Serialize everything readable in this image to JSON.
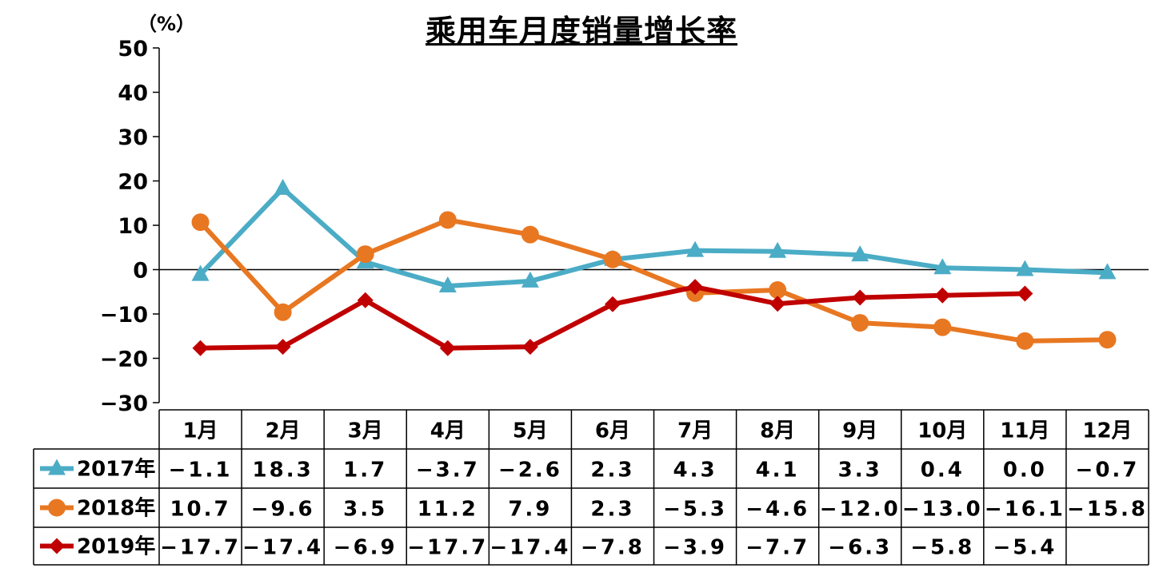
{
  "chart_data": {
    "type": "line",
    "title": "乘用车月度销量增长率",
    "unit": "（%）",
    "categories": [
      "1月",
      "2月",
      "3月",
      "4月",
      "5月",
      "6月",
      "7月",
      "8月",
      "9月",
      "10月",
      "11月",
      "12月"
    ],
    "ylim": [
      -30,
      50
    ],
    "yticks": [
      50,
      40,
      30,
      20,
      10,
      0,
      -10,
      -20,
      -30
    ],
    "grid": false,
    "legend": "data-table",
    "series": [
      {
        "name": "2017年",
        "color": "#4BACC6",
        "marker": "triangle",
        "values": [
          -1.1,
          18.3,
          1.7,
          -3.7,
          -2.6,
          2.3,
          4.3,
          4.1,
          3.3,
          0.4,
          0.0,
          -0.7
        ],
        "labels": [
          "-1.1",
          "18.3",
          "1.7",
          "-3.7",
          "-2.6",
          "2.3",
          "4.3",
          "4.1",
          "3.3",
          "0.4",
          "0.0",
          "-0.7"
        ]
      },
      {
        "name": "2018年",
        "color": "#E87722",
        "marker": "circle",
        "values": [
          10.7,
          -9.6,
          3.5,
          11.2,
          7.9,
          2.3,
          -5.3,
          -4.6,
          -12.0,
          -13.0,
          -16.1,
          -15.8
        ],
        "labels": [
          "10.7",
          "-9.6",
          "3.5",
          "11.2",
          "7.9",
          "2.3",
          "-5.3",
          "-4.6",
          "-12.0",
          "-13.0",
          "-16.1",
          "-15.8"
        ]
      },
      {
        "name": "2019年",
        "color": "#C00000",
        "marker": "diamond",
        "values": [
          -17.7,
          -17.4,
          -6.9,
          -17.7,
          -17.4,
          -7.8,
          -3.9,
          -7.7,
          -6.3,
          -5.8,
          -5.4,
          null
        ],
        "labels": [
          "-17.7",
          "-17.4",
          "-6.9",
          "-17.7",
          "-17.4",
          "-7.8",
          "-3.9",
          "-7.7",
          "-6.3",
          "-5.8",
          "-5.4",
          ""
        ]
      }
    ]
  }
}
